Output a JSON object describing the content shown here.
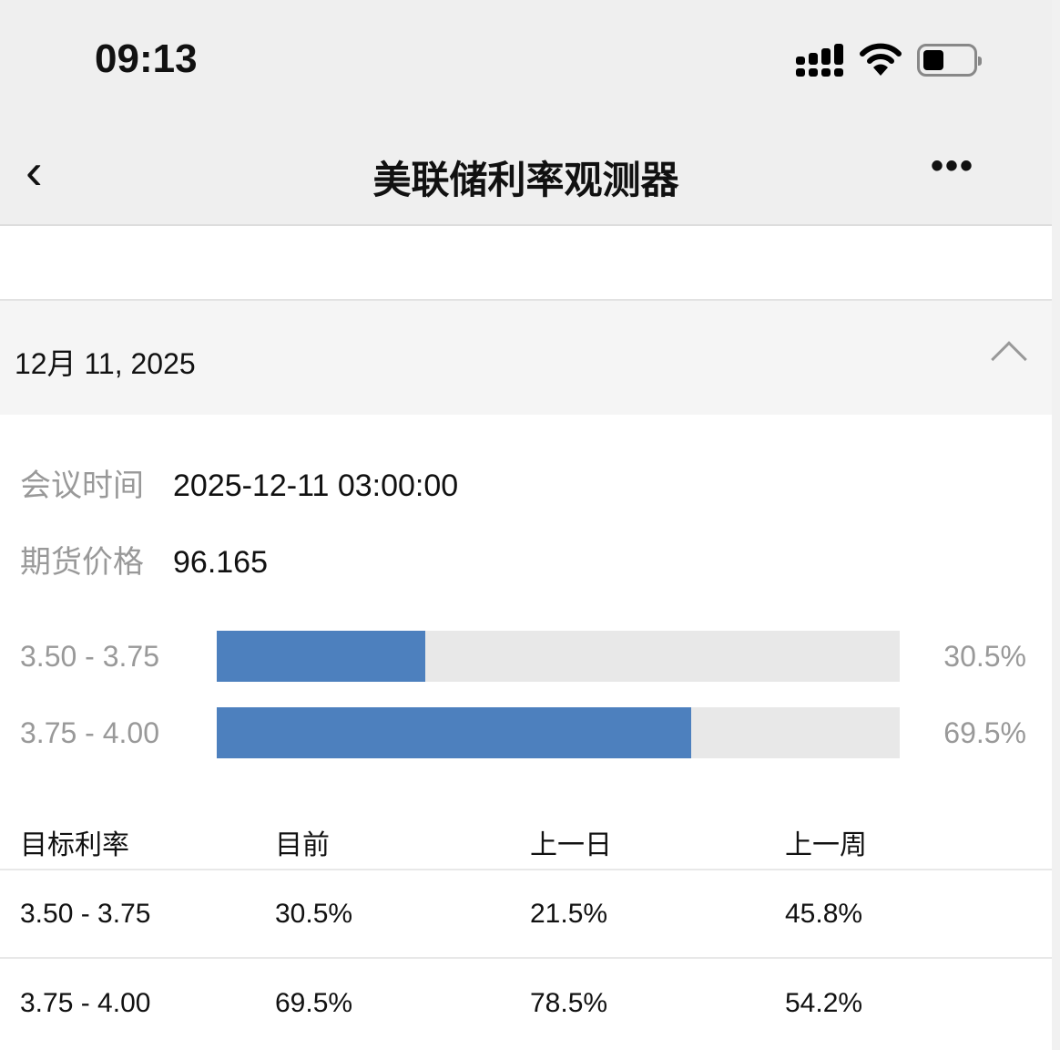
{
  "status_bar": {
    "time": "09:13",
    "icons": [
      "signal-icon",
      "wifi-icon",
      "battery-icon"
    ]
  },
  "nav": {
    "title": "美联储利率观测器",
    "back_icon": "chevron-left-icon",
    "more_icon": "more-icon"
  },
  "meeting": {
    "date": "12月 11, 2025",
    "collapse_icon": "chevron-up-icon",
    "time_label": "会议时间",
    "time_value": "2025-12-11 03:00:00",
    "price_label": "期货价格",
    "price_value": "96.165"
  },
  "bars": [
    {
      "range": "3.50 - 3.75",
      "percent_label": "30.5%",
      "percent": 30.5
    },
    {
      "range": "3.75 - 4.00",
      "percent_label": "69.5%",
      "percent": 69.5
    }
  ],
  "bar_color": "#4d80be",
  "table": {
    "headers": [
      "目标利率",
      "目前",
      "上一日",
      "上一周"
    ],
    "rows": [
      [
        "3.50 - 3.75",
        "30.5%",
        "21.5%",
        "45.8%"
      ],
      [
        "3.75 - 4.00",
        "69.5%",
        "78.5%",
        "54.2%"
      ]
    ]
  }
}
